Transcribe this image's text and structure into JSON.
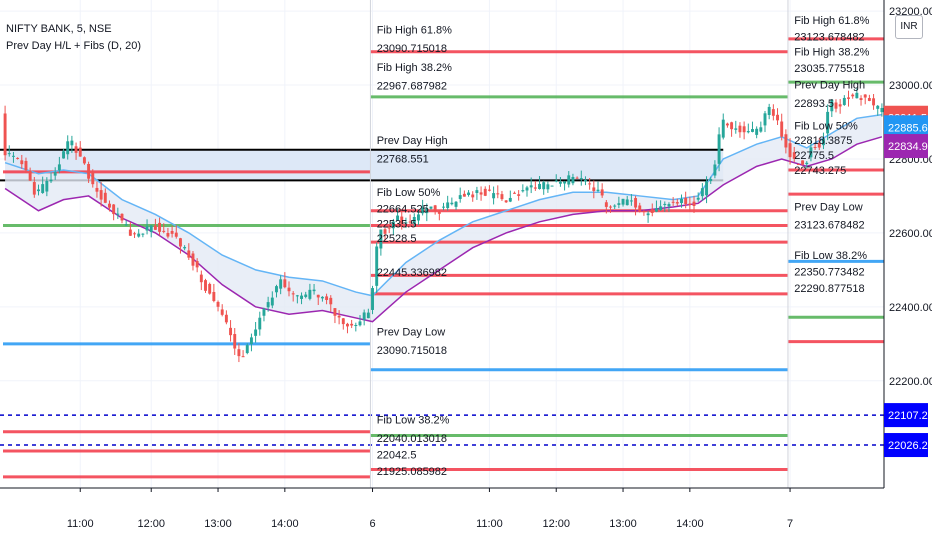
{
  "header": {
    "symbol": "NIFTY BANK, 5, NSE",
    "indicator": "Prev Day H/L + Fibs (D, 20)",
    "currency_button": "INR"
  },
  "chart_data": {
    "type": "candlestick",
    "title": "NIFTY BANK, 5, NSE",
    "indicator": "Prev Day H/L + Fibs (D, 20)",
    "y_range": [
      21910,
      23230
    ],
    "y_ticks": [
      "23200.00",
      "23000.00",
      "22800.00",
      "22600.00",
      "22400.00",
      "22200.00"
    ],
    "y_tick_values": [
      23200,
      23000,
      22800,
      22600,
      22400,
      22200
    ],
    "x_ticks": [
      "11:00",
      "12:00",
      "13:00",
      "14:00",
      "6",
      "11:00",
      "12:00",
      "13:00",
      "14:00",
      "7"
    ],
    "x_tick_bars": [
      18,
      35,
      51,
      67,
      88,
      116,
      132,
      148,
      164,
      188
    ],
    "session_breaks": [
      88,
      188
    ],
    "bar_count": 211,
    "price_path": [
      [
        0,
        22810
      ],
      [
        4,
        22800
      ],
      [
        8,
        22700
      ],
      [
        12,
        22760
      ],
      [
        16,
        22850
      ],
      [
        19,
        22790
      ],
      [
        22,
        22720
      ],
      [
        27,
        22650
      ],
      [
        31,
        22590
      ],
      [
        36,
        22620
      ],
      [
        41,
        22590
      ],
      [
        45,
        22530
      ],
      [
        49,
        22440
      ],
      [
        53,
        22370
      ],
      [
        55,
        22300
      ],
      [
        57,
        22260
      ],
      [
        59,
        22310
      ],
      [
        63,
        22400
      ],
      [
        66,
        22470
      ],
      [
        70,
        22420
      ],
      [
        74,
        22440
      ],
      [
        78,
        22410
      ],
      [
        81,
        22360
      ],
      [
        84,
        22340
      ],
      [
        88,
        22400
      ],
      [
        90,
        22620
      ],
      [
        92,
        22600
      ],
      [
        94,
        22640
      ],
      [
        97,
        22620
      ],
      [
        101,
        22670
      ],
      [
        105,
        22660
      ],
      [
        110,
        22700
      ],
      [
        115,
        22710
      ],
      [
        120,
        22690
      ],
      [
        126,
        22720
      ],
      [
        131,
        22730
      ],
      [
        137,
        22750
      ],
      [
        141,
        22730
      ],
      [
        145,
        22670
      ],
      [
        150,
        22690
      ],
      [
        154,
        22650
      ],
      [
        158,
        22680
      ],
      [
        162,
        22690
      ],
      [
        166,
        22680
      ],
      [
        170,
        22760
      ],
      [
        172,
        22900
      ],
      [
        176,
        22880
      ],
      [
        180,
        22870
      ],
      [
        184,
        22940
      ],
      [
        186,
        22880
      ],
      [
        189,
        22800
      ],
      [
        192,
        22780
      ],
      [
        194,
        22840
      ],
      [
        196,
        22830
      ],
      [
        198,
        22960
      ],
      [
        200,
        22940
      ],
      [
        203,
        22975
      ],
      [
        207,
        22960
      ],
      [
        210,
        22930
      ]
    ],
    "ema_fast": [
      [
        0,
        22790
      ],
      [
        8,
        22760
      ],
      [
        14,
        22770
      ],
      [
        20,
        22760
      ],
      [
        28,
        22690
      ],
      [
        36,
        22650
      ],
      [
        44,
        22600
      ],
      [
        52,
        22540
      ],
      [
        60,
        22500
      ],
      [
        68,
        22480
      ],
      [
        76,
        22470
      ],
      [
        84,
        22440
      ],
      [
        88,
        22430
      ],
      [
        96,
        22520
      ],
      [
        104,
        22580
      ],
      [
        112,
        22630
      ],
      [
        120,
        22660
      ],
      [
        128,
        22690
      ],
      [
        136,
        22710
      ],
      [
        144,
        22710
      ],
      [
        152,
        22700
      ],
      [
        160,
        22690
      ],
      [
        166,
        22700
      ],
      [
        172,
        22800
      ],
      [
        180,
        22840
      ],
      [
        186,
        22860
      ],
      [
        192,
        22830
      ],
      [
        198,
        22870
      ],
      [
        204,
        22910
      ],
      [
        210,
        22920
      ]
    ],
    "ema_slow": [
      [
        0,
        22720
      ],
      [
        8,
        22660
      ],
      [
        14,
        22690
      ],
      [
        20,
        22700
      ],
      [
        28,
        22640
      ],
      [
        36,
        22600
      ],
      [
        44,
        22540
      ],
      [
        52,
        22460
      ],
      [
        60,
        22400
      ],
      [
        68,
        22380
      ],
      [
        76,
        22390
      ],
      [
        84,
        22370
      ],
      [
        88,
        22360
      ],
      [
        96,
        22440
      ],
      [
        104,
        22500
      ],
      [
        112,
        22560
      ],
      [
        120,
        22600
      ],
      [
        128,
        22630
      ],
      [
        136,
        22650
      ],
      [
        144,
        22660
      ],
      [
        152,
        22660
      ],
      [
        160,
        22670
      ],
      [
        166,
        22680
      ],
      [
        172,
        22730
      ],
      [
        180,
        22780
      ],
      [
        186,
        22800
      ],
      [
        192,
        22780
      ],
      [
        198,
        22800
      ],
      [
        204,
        22840
      ],
      [
        210,
        22860
      ]
    ],
    "prev_day_box": {
      "from_bar": 0,
      "to_bar": 172,
      "top": 22825,
      "bottom": 22742
    },
    "horizontal_levels": [
      {
        "from": 0,
        "to": 88,
        "price": 22765,
        "kind": "fib-red"
      },
      {
        "from": 0,
        "to": 88,
        "price": 22620,
        "kind": "fib-green"
      },
      {
        "from": 0,
        "to": 88,
        "price": 22300,
        "kind": "prev-low"
      },
      {
        "from": 0,
        "to": 88,
        "price": 22062,
        "kind": "fib-red"
      },
      {
        "from": 0,
        "to": 88,
        "price": 22010,
        "kind": "fib-red"
      },
      {
        "from": 0,
        "to": 88,
        "price": 21940,
        "kind": "fib-red"
      },
      {
        "from": 88,
        "to": 188,
        "price": 23090,
        "kind": "fib-red"
      },
      {
        "from": 88,
        "to": 188,
        "price": 22968,
        "kind": "fib-green"
      },
      {
        "from": 88,
        "to": 188,
        "price": 22660,
        "kind": "fib-red"
      },
      {
        "from": 88,
        "to": 188,
        "price": 22620,
        "kind": "fib-red"
      },
      {
        "from": 88,
        "to": 188,
        "price": 22575,
        "kind": "fib-red"
      },
      {
        "from": 88,
        "to": 188,
        "price": 22485,
        "kind": "fib-red"
      },
      {
        "from": 88,
        "to": 188,
        "price": 22435,
        "kind": "fib-red"
      },
      {
        "from": 88,
        "to": 188,
        "price": 22230,
        "kind": "prev-low"
      },
      {
        "from": 88,
        "to": 188,
        "price": 22052,
        "kind": "fib-green"
      },
      {
        "from": 88,
        "to": 188,
        "price": 21960,
        "kind": "fib-red"
      },
      {
        "from": 188,
        "to": 211,
        "price": 23125,
        "kind": "fib-red"
      },
      {
        "from": 188,
        "to": 211,
        "price": 23008,
        "kind": "fib-green"
      },
      {
        "from": 188,
        "to": 211,
        "price": 22770,
        "kind": "fib-red"
      },
      {
        "from": 188,
        "to": 211,
        "price": 22705,
        "kind": "fib-red"
      },
      {
        "from": 188,
        "to": 211,
        "price": 22523,
        "kind": "prev-low"
      },
      {
        "from": 188,
        "to": 211,
        "price": 22372,
        "kind": "fib-green"
      },
      {
        "from": 188,
        "to": 211,
        "price": 22306,
        "kind": "fib-red"
      }
    ],
    "dashed_levels": [
      22107.21,
      22026.21
    ],
    "level_labels": [
      {
        "bar": 89,
        "price": 23140,
        "text": "Fib High 61.8%"
      },
      {
        "bar": 89,
        "price": 23090,
        "text": "23090.715018"
      },
      {
        "bar": 89,
        "price": 23038,
        "text": "Fib High 38.2%"
      },
      {
        "bar": 89,
        "price": 22988,
        "text": "22967.687982"
      },
      {
        "bar": 89,
        "price": 22840,
        "text": "Prev Day High"
      },
      {
        "bar": 89,
        "price": 22790,
        "text": "22768.551"
      },
      {
        "bar": 89,
        "price": 22700,
        "text": "Fib Low 50%"
      },
      {
        "bar": 89,
        "price": 22655,
        "text": "22664.525"
      },
      {
        "bar": 89,
        "price": 22615,
        "text": "22535.5"
      },
      {
        "bar": 89,
        "price": 22575,
        "text": "22528.5"
      },
      {
        "bar": 89,
        "price": 22483,
        "text": "22445.336982"
      },
      {
        "bar": 89,
        "price": 22323,
        "text": "Prev Day Low"
      },
      {
        "bar": 89,
        "price": 22273,
        "text": "23090.715018"
      },
      {
        "bar": 89,
        "price": 22085,
        "text": "Fib Low 38.2%"
      },
      {
        "bar": 89,
        "price": 22035,
        "text": "22040.013018"
      },
      {
        "bar": 89,
        "price": 21990,
        "text": "22042.5"
      },
      {
        "bar": 89,
        "price": 21945,
        "text": "21925.085982"
      },
      {
        "bar": 189,
        "price": 23165,
        "text": "Fib High 61.8%"
      },
      {
        "bar": 189,
        "price": 23120,
        "text": "23123.678482"
      },
      {
        "bar": 189,
        "price": 23080,
        "text": "Fib High 38.2%"
      },
      {
        "bar": 189,
        "price": 23035,
        "text": "23035.775518"
      },
      {
        "bar": 189,
        "price": 22990,
        "text": "Prev Day High"
      },
      {
        "bar": 189,
        "price": 22940,
        "text": "22893.5"
      },
      {
        "bar": 189,
        "price": 22880,
        "text": "Fib Low 50%"
      },
      {
        "bar": 189,
        "price": 22840,
        "text": "22818.3875"
      },
      {
        "bar": 189,
        "price": 22800,
        "text": "22775.5"
      },
      {
        "bar": 189,
        "price": 22760,
        "text": "22743.275"
      },
      {
        "bar": 189,
        "price": 22660,
        "text": "Prev Day Low"
      },
      {
        "bar": 189,
        "price": 22612,
        "text": "23123.678482"
      },
      {
        "bar": 189,
        "price": 22530,
        "text": "Fib Low 38.2%"
      },
      {
        "bar": 189,
        "price": 22485,
        "text": "22350.773482"
      },
      {
        "bar": 189,
        "price": 22440,
        "text": "22290.877518"
      }
    ],
    "price_tags": [
      {
        "text": "22911.50",
        "value": 22911.5,
        "color": "#ef5350"
      },
      {
        "text": "22885.63",
        "value": 22885.63,
        "color": "#2196f3"
      },
      {
        "text": "22834.93",
        "value": 22834.93,
        "color": "#9c27b0"
      },
      {
        "text": "22107.21",
        "value": 22107.21,
        "color": "#0000ff"
      },
      {
        "text": "22026.21",
        "value": 22026.21,
        "color": "#0000ff"
      }
    ],
    "colors": {
      "up": "#26a69a",
      "down": "#ef5350",
      "fib_red": "#f23645",
      "fib_green": "#4caf50",
      "prev_low": "#2196f3",
      "ema_fast": "#64b5f6",
      "ema_slow": "#9c27b0",
      "box_fill": "#dde8f7",
      "box_border": "#000000",
      "dashed": "#0000cc"
    }
  }
}
